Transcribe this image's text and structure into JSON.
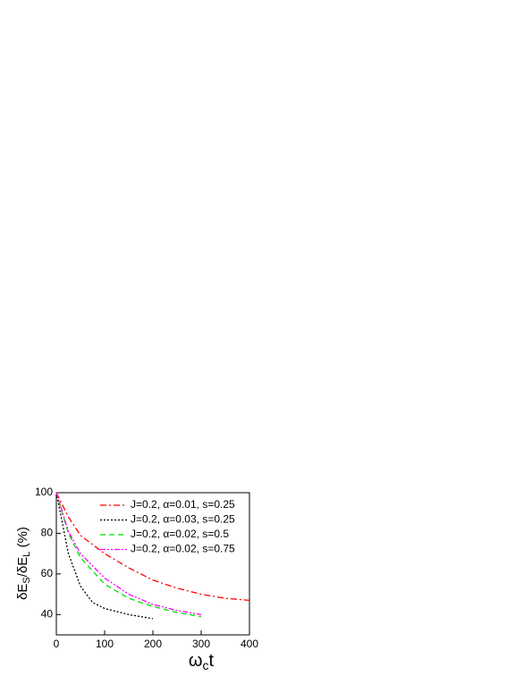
{
  "chart_data": {
    "type": "line",
    "xlabel": {
      "main": "ω",
      "sub": "c",
      "rest": "t"
    },
    "ylabel": {
      "p1": "δE",
      "s1": "S",
      "p2": "/δE",
      "s2": "L",
      "p3": " (%)"
    },
    "xlim": [
      0,
      400
    ],
    "xticks": [
      0,
      100,
      200,
      300,
      400
    ],
    "ylim": [
      30,
      100
    ],
    "yticks": [
      40,
      60,
      80,
      100
    ],
    "legend": "upper-right",
    "series": [
      {
        "name": "J=0.2, α=0.01, s=0.25",
        "color": "#ff0000",
        "line_style": "dash-dot",
        "x": [
          0,
          25,
          50,
          100,
          150,
          200,
          250,
          300,
          350,
          400
        ],
        "values": [
          100,
          88,
          79,
          70,
          63,
          57,
          53,
          50,
          48,
          47
        ]
      },
      {
        "name": "J=0.2, α=0.03, s=0.25",
        "color": "#000000",
        "line_style": "dot",
        "x": [
          0,
          25,
          50,
          75,
          100,
          150,
          200
        ],
        "values": [
          100,
          70,
          54,
          46,
          43,
          40,
          38
        ]
      },
      {
        "name": "J=0.2, α=0.02, s=0.5",
        "color": "#00dd00",
        "line_style": "dash",
        "x": [
          0,
          25,
          50,
          100,
          150,
          200,
          250,
          300
        ],
        "values": [
          100,
          80,
          68,
          55,
          48,
          44,
          41,
          39
        ]
      },
      {
        "name": "J=0.2, α=0.02, s=0.75",
        "color": "#ff00ff",
        "line_style": "dash-dot-dot",
        "x": [
          0,
          25,
          50,
          100,
          150,
          200,
          250,
          300
        ],
        "values": [
          100,
          81,
          70,
          58,
          50,
          45,
          42,
          40
        ]
      }
    ]
  }
}
